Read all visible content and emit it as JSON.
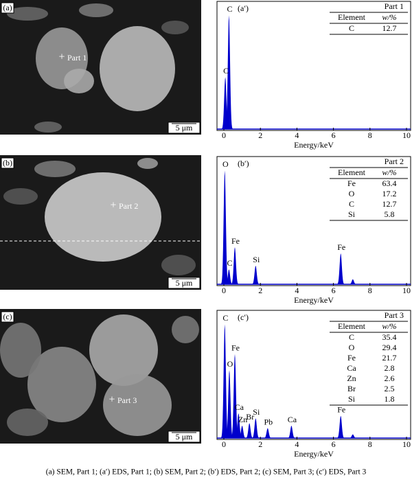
{
  "panels": [
    {
      "sem": {
        "label": "(a)",
        "part": "Part 1",
        "scale": "5 μm"
      },
      "eds": {
        "label": "(a′)",
        "xlim": [
          0,
          10
        ],
        "xticks": [
          0,
          2,
          4,
          6,
          8,
          10
        ],
        "ylim": [
          0,
          100
        ],
        "xlabel": "Energy/keV",
        "peaks": [
          {
            "label": "C",
            "x": 0.28,
            "height": 92
          },
          {
            "label": "C",
            "x": 0.08,
            "height": 42
          }
        ],
        "table": {
          "title": "Part 1",
          "columns": [
            "Element",
            "w/%"
          ],
          "rows": [
            [
              "C",
              12.7
            ]
          ]
        }
      }
    },
    {
      "sem": {
        "label": "(b)",
        "part": "Part 2",
        "scale": "5 μm"
      },
      "eds": {
        "label": "(b′)",
        "xlim": [
          0,
          10
        ],
        "xticks": [
          0,
          2,
          4,
          6,
          8,
          10
        ],
        "ylim": [
          0,
          100
        ],
        "xlabel": "Energy/keV",
        "peaks": [
          {
            "label": "O",
            "x": 0.05,
            "height": 92
          },
          {
            "label": "C",
            "x": 0.28,
            "height": 12
          },
          {
            "label": "Fe",
            "x": 0.6,
            "height": 30
          },
          {
            "label": "Si",
            "x": 1.74,
            "height": 15
          },
          {
            "label": "Fe",
            "x": 6.4,
            "height": 25
          },
          {
            "label": null,
            "x": 7.06,
            "height": 4
          }
        ],
        "table": {
          "title": "Part 2",
          "columns": [
            "Element",
            "w/%"
          ],
          "rows": [
            [
              "Fe",
              63.4
            ],
            [
              "O",
              17.2
            ],
            [
              "C",
              12.7
            ],
            [
              "Si",
              5.8
            ]
          ]
        }
      }
    },
    {
      "sem": {
        "label": "(c)",
        "part": "Part 3",
        "scale": "5 μm"
      },
      "eds": {
        "label": "(c′)",
        "xlim": [
          0,
          10
        ],
        "xticks": [
          0,
          2,
          4,
          6,
          8,
          10
        ],
        "ylim": [
          0,
          100
        ],
        "xlabel": "Energy/keV",
        "peaks": [
          {
            "label": "C",
            "x": 0.05,
            "height": 92
          },
          {
            "label": "O",
            "x": 0.3,
            "height": 55
          },
          {
            "label": "Fe",
            "x": 0.6,
            "height": 68
          },
          {
            "label": "Ca",
            "x": 0.8,
            "height": 20
          },
          {
            "label": "Zn",
            "x": 1.0,
            "height": 10
          },
          {
            "label": "Br",
            "x": 1.4,
            "height": 12
          },
          {
            "label": "Si",
            "x": 1.74,
            "height": 16
          },
          {
            "label": "Pb",
            "x": 2.4,
            "height": 8
          },
          {
            "label": "Ca",
            "x": 3.7,
            "height": 10
          },
          {
            "label": "Fe",
            "x": 6.4,
            "height": 18
          },
          {
            "label": null,
            "x": 7.06,
            "height": 3
          }
        ],
        "table": {
          "title": "Part 3",
          "columns": [
            "Element",
            "w/%"
          ],
          "rows": [
            [
              "C",
              35.4
            ],
            [
              "O",
              29.4
            ],
            [
              "Fe",
              21.7
            ],
            [
              "Ca",
              2.8
            ],
            [
              "Zn",
              2.6
            ],
            [
              "Br",
              2.5
            ],
            [
              "Si",
              1.8
            ]
          ]
        }
      }
    }
  ],
  "caption": "(a) SEM, Part 1; (a′) EDS, Part 1; (b) SEM, Part 2; (b′) EDS, Part 2; (c) SEM, Part 3; (c′) EDS, Part 3"
}
